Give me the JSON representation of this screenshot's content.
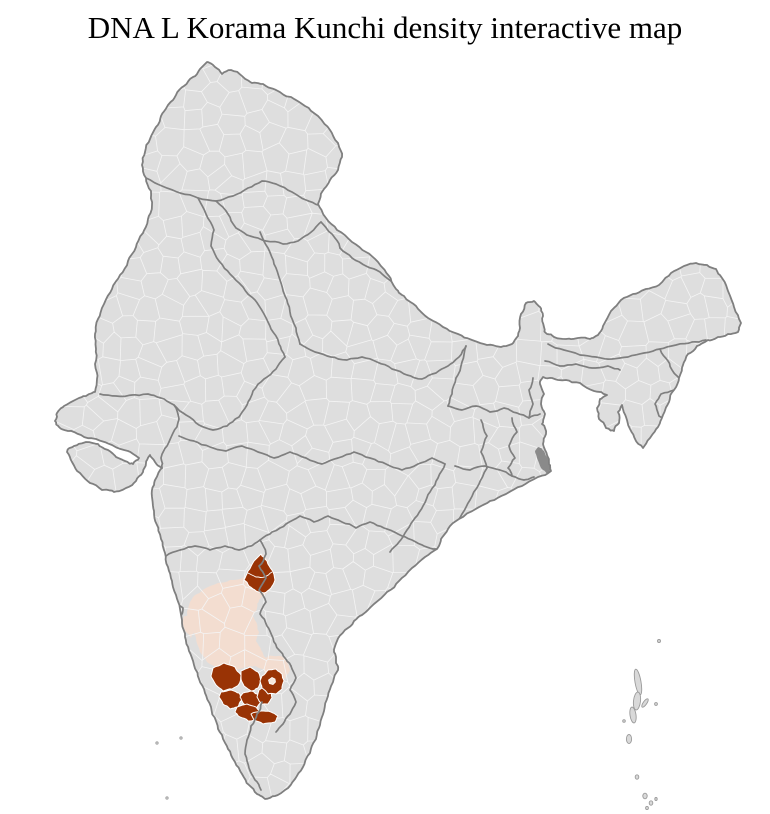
{
  "page": {
    "title": "DNA L Korama Kunchi density interactive map"
  },
  "map": {
    "region_label": "India district-level choropleth",
    "colors": {
      "background": "#ffffff",
      "land": "#dedede",
      "district_line": "#f4f4f4",
      "state_border": "#7f7f7f",
      "national_border": "#7f7f7f",
      "highlight_high": "#993305",
      "highlight_low": "#f3ddd0",
      "highlight_hole": "#f6e7dc",
      "dense_urban_patch": "#8a8a8a",
      "island_fill": "#d9d9d9",
      "island_stroke": "#9a9a9a"
    },
    "highlights": [
      {
        "name": "light-density-region-north-karnataka",
        "density": "low",
        "color_key": "highlight_low"
      },
      {
        "name": "dark-district-north",
        "density": "high",
        "color_key": "highlight_high"
      },
      {
        "name": "dark-district-cluster-south",
        "density": "high",
        "color_key": "highlight_high"
      },
      {
        "name": "light-district-lobe-east",
        "density": "low",
        "color_key": "highlight_low"
      }
    ]
  }
}
